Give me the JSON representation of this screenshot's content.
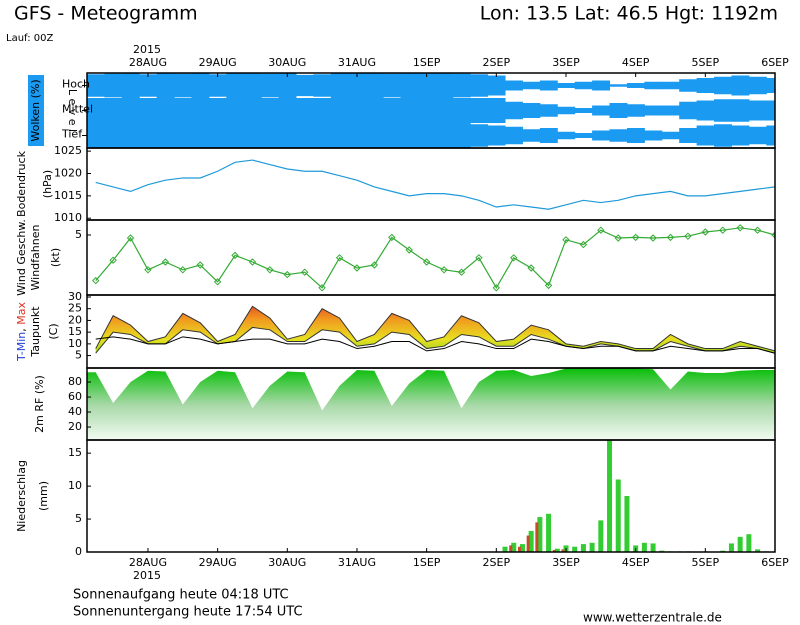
{
  "header": {
    "title": "GFS - Meteogramm",
    "location": "Lon: 13.5 Lat: 46.5 Hgt: 1192m",
    "run": "Lauf: 00Z"
  },
  "time_axis": {
    "year": "2015",
    "xlim": [
      -21,
      216
    ],
    "xticks": [
      {
        "value": 0,
        "label": "28AUG"
      },
      {
        "value": 24,
        "label": "29AUG"
      },
      {
        "value": 48,
        "label": "30AUG"
      },
      {
        "value": 72,
        "label": "31AUG"
      },
      {
        "value": 96,
        "label": "1SEP"
      },
      {
        "value": 120,
        "label": "2SEP"
      },
      {
        "value": 144,
        "label": "3SEP"
      },
      {
        "value": 168,
        "label": "4SEP"
      },
      {
        "value": 192,
        "label": "5SEP"
      },
      {
        "value": 216,
        "label": "6SEP"
      }
    ],
    "x": [
      -18,
      -12,
      -6,
      0,
      6,
      12,
      18,
      24,
      30,
      36,
      42,
      48,
      54,
      60,
      66,
      72,
      78,
      84,
      90,
      96,
      102,
      108,
      114,
      120,
      126,
      132,
      138,
      144,
      150,
      156,
      162,
      168,
      174,
      180,
      186,
      192,
      198,
      204,
      210,
      216
    ]
  },
  "chart_data": [
    {
      "type": "cloud_levels",
      "ylabel": "Wolken (%)",
      "level_label": "L e v e l",
      "color": "#1a9af0",
      "levels": [
        {
          "name": "Hoch",
          "values": [
            90,
            95,
            100,
            90,
            100,
            95,
            100,
            90,
            100,
            100,
            95,
            100,
            85,
            90,
            100,
            100,
            100,
            95,
            100,
            100,
            100,
            95,
            90,
            80,
            40,
            30,
            40,
            20,
            30,
            40,
            10,
            20,
            30,
            30,
            50,
            60,
            70,
            80,
            70,
            60
          ]
        },
        {
          "name": "Mittel",
          "values": [
            100,
            100,
            100,
            100,
            100,
            100,
            100,
            100,
            100,
            100,
            100,
            100,
            100,
            100,
            100,
            100,
            100,
            100,
            100,
            100,
            100,
            100,
            100,
            100,
            70,
            60,
            50,
            30,
            20,
            40,
            60,
            50,
            40,
            40,
            70,
            80,
            90,
            90,
            80,
            80
          ]
        },
        {
          "name": "Tief",
          "values": [
            100,
            100,
            100,
            100,
            100,
            100,
            100,
            100,
            100,
            100,
            100,
            100,
            100,
            100,
            100,
            100,
            100,
            100,
            100,
            100,
            100,
            100,
            90,
            80,
            70,
            50,
            60,
            30,
            20,
            40,
            50,
            60,
            40,
            30,
            60,
            80,
            90,
            80,
            70,
            80
          ]
        }
      ]
    },
    {
      "type": "line",
      "ylabel": "Bodendruck",
      "yunit": "(hPa)",
      "color": "#1f9ad8",
      "ylim": [
        1009.6,
        1025.7
      ],
      "yticks": [
        1010,
        1015,
        1020,
        1025
      ],
      "values": [
        1018,
        1017,
        1016,
        1017.5,
        1018.5,
        1019,
        1019,
        1020.5,
        1022.5,
        1023,
        1022,
        1021,
        1020.5,
        1020.5,
        1019.5,
        1018.5,
        1017,
        1016,
        1015,
        1015.5,
        1015.5,
        1015,
        1014,
        1012.5,
        1013,
        1012.5,
        1012,
        1013,
        1014,
        1013.5,
        1014,
        1015,
        1015.5,
        1016,
        1015,
        1015,
        1015.5,
        1016,
        1016.5,
        1017
      ]
    },
    {
      "type": "line_markers",
      "ylabel": "Wind Geschw.",
      "ylabel2": "Windfahnen",
      "yunit": "(kt)",
      "color": "#33aa33",
      "ylim": [
        0,
        6.25
      ],
      "yticks": [
        5
      ],
      "values": [
        1.2,
        2.9,
        4.75,
        2.1,
        2.75,
        2.1,
        2.5,
        1.1,
        3.3,
        2.75,
        2.1,
        1.7,
        1.9,
        0.6,
        3.1,
        2.25,
        2.5,
        4.8,
        3.75,
        2.75,
        2.1,
        1.9,
        3.1,
        0.6,
        3.1,
        2.25,
        0.8,
        4.6,
        4.2,
        5.4,
        4.75,
        4.8,
        4.75,
        4.8,
        4.9,
        5.25,
        5.4,
        5.6,
        5.4,
        5
      ]
    },
    {
      "type": "band",
      "ylabel": "T-Min, Max",
      "ylabel2": "Taupunkt",
      "yunit": "(C)",
      "ylim": [
        -0.3,
        30.85
      ],
      "yticks": [
        5,
        10,
        15,
        20,
        25,
        30
      ],
      "series": [
        {
          "name": "Max",
          "color": "#e03020",
          "values": [
            8,
            22,
            18,
            11,
            13,
            23,
            19,
            11,
            14,
            26,
            21,
            12,
            14,
            25,
            21,
            11,
            14,
            23,
            20,
            11,
            13,
            22,
            19,
            11,
            12,
            18,
            16,
            10,
            9,
            11,
            10,
            8,
            8,
            14,
            10,
            8,
            8,
            11,
            9,
            7
          ]
        },
        {
          "name": "T-Min",
          "color": "#2040d0",
          "values": [
            6,
            15,
            14,
            10,
            10,
            16,
            15,
            10,
            11,
            17,
            16,
            11,
            11,
            16,
            15,
            9,
            10,
            15,
            14,
            8,
            9,
            14,
            13,
            9,
            9,
            14,
            12,
            9,
            8,
            10,
            9,
            7,
            7,
            11,
            9,
            7,
            7,
            9,
            8,
            6
          ]
        },
        {
          "name": "Taupunkt",
          "color": "#000000",
          "values": [
            12,
            13,
            12,
            10,
            10,
            13,
            12,
            10,
            11,
            12,
            12,
            10,
            10,
            12,
            11,
            8,
            9,
            11,
            11,
            7,
            8,
            11,
            10,
            8,
            8,
            12,
            11,
            9,
            8,
            9,
            9,
            7,
            7,
            9,
            8,
            7,
            7,
            8,
            8,
            6
          ]
        }
      ]
    },
    {
      "type": "area",
      "ylabel": "2m RF (%)",
      "color": "#22cc22",
      "ylim": [
        2.7,
        98.7
      ],
      "yticks": [
        20,
        40,
        60,
        80
      ],
      "values": [
        93,
        52,
        80,
        95,
        94,
        50,
        80,
        95,
        93,
        45,
        75,
        94,
        93,
        42,
        75,
        96,
        95,
        48,
        78,
        96,
        95,
        45,
        80,
        95,
        96,
        88,
        92,
        98,
        98,
        98,
        98,
        98,
        97,
        70,
        94,
        92,
        92,
        95,
        96,
        96
      ]
    },
    {
      "type": "bar",
      "ylabel": "Niederschlag",
      "yunit": "(mm)",
      "ylim": [
        0,
        17
      ],
      "yticks": [
        0,
        5,
        10,
        15
      ],
      "x": [
        123,
        126,
        129,
        132,
        135,
        138,
        141,
        144,
        147,
        150,
        153,
        156,
        159,
        162,
        165,
        168,
        171,
        174,
        177,
        180,
        183,
        186,
        189,
        192,
        195,
        198,
        201,
        204,
        207,
        210,
        213,
        216
      ],
      "series": [
        {
          "color": "#33cc33",
          "values": [
            0.8,
            1.4,
            1.2,
            3.2,
            5.3,
            5.8,
            0.5,
            1.0,
            0.8,
            1.2,
            1.4,
            4.8,
            17,
            11,
            8.5,
            1.0,
            1.4,
            1.3,
            0.2,
            0.1,
            0.1,
            0.1,
            0,
            0.1,
            0,
            0.2,
            1.3,
            2.3,
            2.7,
            0.4,
            0.1,
            0
          ]
        },
        {
          "color": "#c84a2a",
          "values": [
            0,
            1.0,
            0.8,
            2.5,
            4.5,
            0,
            0.3,
            0.4,
            0,
            0,
            0,
            0,
            0,
            0,
            0,
            0,
            0,
            0,
            0,
            0,
            0,
            0,
            0,
            0,
            0,
            0,
            0,
            0,
            0,
            0,
            0,
            0
          ]
        }
      ]
    }
  ],
  "footer": {
    "sunrise": "Sonnenaufgang heute 04:18 UTC",
    "sunset": "Sonnenuntergang heute 17:54 UTC",
    "source": "www.wetterzentrale.de"
  }
}
